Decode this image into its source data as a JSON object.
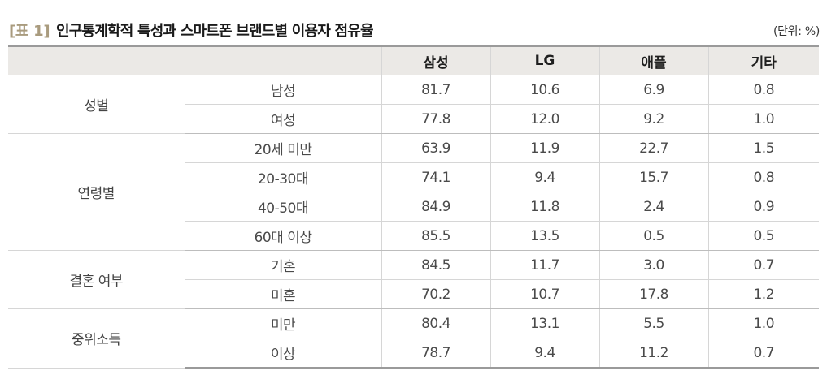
{
  "title": {
    "tag": "[표 1]",
    "text": "인구통계학적 특성과 스마트폰 브랜드별 이용자 점유율",
    "unit": "(단위: %)"
  },
  "table": {
    "headers": [
      "",
      "삼성",
      "LG",
      "애플",
      "기타"
    ],
    "groups": [
      {
        "label": "성별",
        "rows": [
          {
            "sub": "남성",
            "values": [
              "81.7",
              "10.6",
              "6.9",
              "0.8"
            ]
          },
          {
            "sub": "여성",
            "values": [
              "77.8",
              "12.0",
              "9.2",
              "1.0"
            ]
          }
        ]
      },
      {
        "label": "연령별",
        "rows": [
          {
            "sub": "20세 미만",
            "values": [
              "63.9",
              "11.9",
              "22.7",
              "1.5"
            ]
          },
          {
            "sub": "20-30대",
            "values": [
              "74.1",
              "9.4",
              "15.7",
              "0.8"
            ]
          },
          {
            "sub": "40-50대",
            "values": [
              "84.9",
              "11.8",
              "2.4",
              "0.9"
            ]
          },
          {
            "sub": "60대 이상",
            "values": [
              "85.5",
              "13.5",
              "0.5",
              "0.5"
            ]
          }
        ]
      },
      {
        "label": "결혼 여부",
        "rows": [
          {
            "sub": "기혼",
            "values": [
              "84.5",
              "11.7",
              "3.0",
              "0.7"
            ]
          },
          {
            "sub": "미혼",
            "values": [
              "70.2",
              "10.7",
              "17.8",
              "1.2"
            ]
          }
        ]
      },
      {
        "label": "중위소득",
        "rows": [
          {
            "sub": "미만",
            "values": [
              "80.4",
              "13.1",
              "5.5",
              "1.0"
            ]
          },
          {
            "sub": "이상",
            "values": [
              "78.7",
              "9.4",
              "11.2",
              "0.7"
            ]
          }
        ]
      }
    ]
  }
}
